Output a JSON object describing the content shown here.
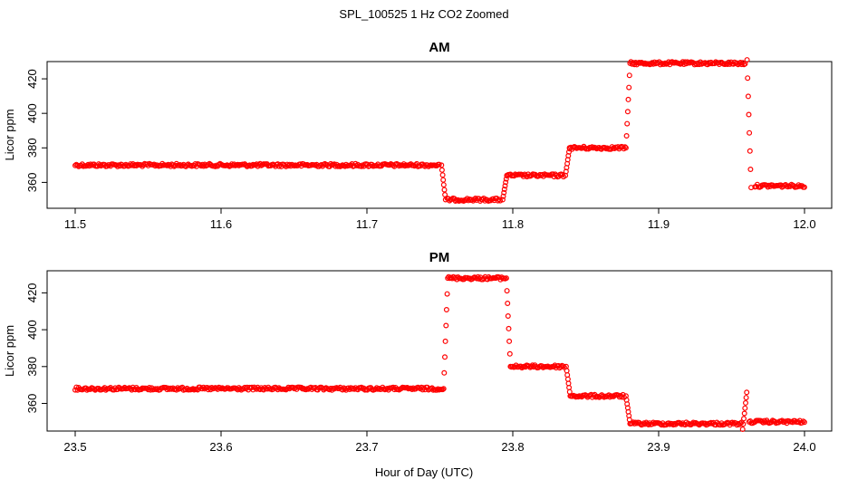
{
  "figure": {
    "title": "SPL_100525  1 Hz CO2 Zoomed",
    "xlabel": "Hour of Day (UTC)"
  },
  "colors": {
    "points": "#ff0000",
    "axes": "#000000",
    "background": "#ffffff"
  },
  "chart_data": [
    {
      "type": "scatter",
      "title": "AM",
      "ylabel": "Licor ppm",
      "xlim": [
        11.5,
        12.0
      ],
      "ylim": [
        345,
        430
      ],
      "xticks": [
        "11.5",
        "11.6",
        "11.7",
        "11.8",
        "11.9",
        "12.0"
      ],
      "yticks": [
        "360",
        "380",
        "400",
        "420"
      ],
      "segments": [
        {
          "x": [
            11.5,
            11.75
          ],
          "y": 370
        },
        {
          "x": [
            11.755,
            11.792
          ],
          "y": 350
        },
        {
          "x": [
            11.796,
            11.835
          ],
          "y": 364
        },
        {
          "x": [
            11.839,
            11.877
          ],
          "y": 380
        },
        {
          "x": [
            11.881,
            11.96
          ],
          "y": 429
        },
        {
          "x": [
            11.966,
            12.0
          ],
          "y": 358
        }
      ],
      "transitions": [
        {
          "x": 11.7525,
          "y": [
            370,
            350
          ]
        },
        {
          "x": 11.7945,
          "y": [
            350,
            364
          ]
        },
        {
          "x": 11.8375,
          "y": [
            364,
            380
          ]
        },
        {
          "x": 11.879,
          "y": [
            380,
            429
          ]
        },
        {
          "x": 11.962,
          "y": [
            431,
            357
          ]
        }
      ]
    },
    {
      "type": "scatter",
      "title": "PM",
      "ylabel": "Licor ppm",
      "xlim": [
        23.5,
        24.0
      ],
      "ylim": [
        345,
        432
      ],
      "xticks": [
        "23.5",
        "23.6",
        "23.7",
        "23.8",
        "23.9",
        "24.0"
      ],
      "yticks": [
        "360",
        "380",
        "400",
        "420"
      ],
      "segments": [
        {
          "x": [
            23.5,
            23.752
          ],
          "y": 368
        },
        {
          "x": [
            23.756,
            23.795
          ],
          "y": 428
        },
        {
          "x": [
            23.799,
            23.836
          ],
          "y": 380
        },
        {
          "x": [
            23.84,
            23.877
          ],
          "y": 364
        },
        {
          "x": [
            23.881,
            23.957
          ],
          "y": 349
        },
        {
          "x": [
            23.962,
            24.0
          ],
          "y": 350
        }
      ],
      "transitions": [
        {
          "x": 23.754,
          "y": [
            368,
            428
          ]
        },
        {
          "x": 23.797,
          "y": [
            428,
            380
          ]
        },
        {
          "x": 23.838,
          "y": [
            380,
            364
          ]
        },
        {
          "x": 23.879,
          "y": [
            364,
            349
          ]
        },
        {
          "x": 23.959,
          "y": [
            346,
            366
          ]
        }
      ]
    }
  ]
}
